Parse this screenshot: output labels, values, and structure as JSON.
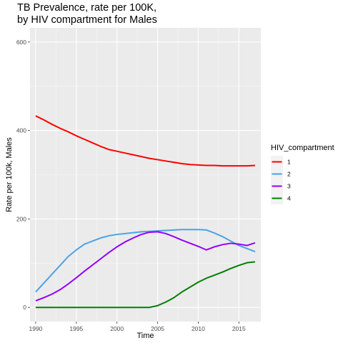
{
  "chart_data": {
    "type": "line",
    "title": "TB Prevalence, rate per 100K,\nby HIV compartment for Males",
    "xlabel": "Time",
    "ylabel": "Rate per 100k, Males",
    "xlim": [
      1989.3,
      2017.7
    ],
    "ylim": [
      -32,
      632
    ],
    "x_ticks": [
      1990,
      1995,
      2000,
      2005,
      2010,
      2015
    ],
    "y_ticks": [
      0,
      200,
      400,
      600
    ],
    "grid": true,
    "legend": {
      "title": "HIV_compartment",
      "position": "right"
    },
    "x": [
      1990,
      1991,
      1992,
      1993,
      1994,
      1995,
      1996,
      1997,
      1998,
      1999,
      2000,
      2001,
      2002,
      2003,
      2004,
      2005,
      2006,
      2007,
      2008,
      2009,
      2010,
      2011,
      2012,
      2013,
      2014,
      2015,
      2016,
      2017
    ],
    "series": [
      {
        "name": "1",
        "color": "#ff0000",
        "values": [
          433,
          424,
          414,
          405,
          397,
          388,
          380,
          372,
          364,
          357,
          353,
          349,
          345,
          341,
          337,
          334,
          331,
          328,
          325,
          323,
          322,
          321,
          321,
          320,
          320,
          320,
          320,
          321
        ]
      },
      {
        "name": "2",
        "color": "#4ba3e6",
        "values": [
          35,
          55,
          75,
          95,
          115,
          130,
          143,
          150,
          157,
          162,
          165,
          167,
          169,
          171,
          172,
          173,
          174,
          175,
          176,
          176,
          176,
          175,
          168,
          160,
          150,
          140,
          133,
          126
        ]
      },
      {
        "name": "3",
        "color": "#9500ff",
        "values": [
          15,
          22,
          30,
          40,
          53,
          67,
          82,
          96,
          110,
          124,
          137,
          148,
          157,
          165,
          170,
          171,
          167,
          160,
          152,
          145,
          138,
          130,
          137,
          142,
          145,
          143,
          140,
          146
        ]
      },
      {
        "name": "4",
        "color": "#008000",
        "values": [
          0,
          0,
          0,
          0,
          0,
          0,
          0,
          0,
          0,
          0,
          0,
          0,
          0,
          0,
          0,
          4,
          12,
          22,
          35,
          46,
          57,
          66,
          73,
          80,
          88,
          95,
          101,
          103
        ]
      }
    ]
  }
}
